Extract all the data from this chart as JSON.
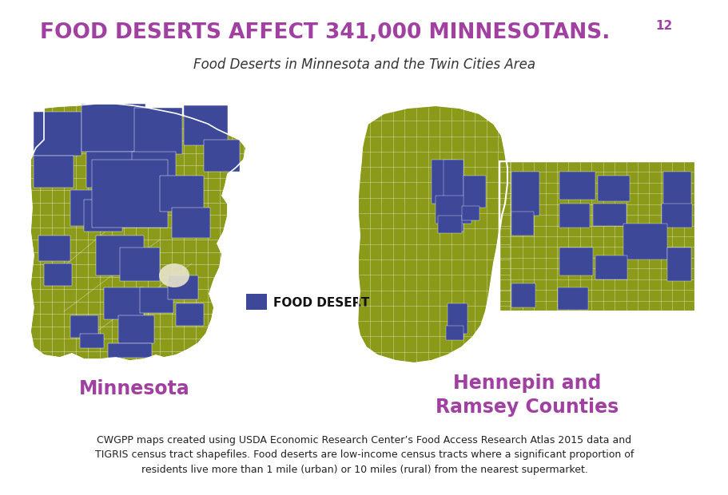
{
  "title_main": "FOOD DESERTS AFFECT 341,000 MINNESOTANS.",
  "title_superscript": "12",
  "subtitle": "Food Deserts in Minnesota and the Twin Cities Area",
  "label_left": "Minnesota",
  "label_right": "Hennepin and\nRamsey Counties",
  "legend_label": "FOOD DESERT",
  "legend_color": "#3d4f9f",
  "footnote": "CWGPP maps created using USDA Economic Research Center’s Food Access Research Atlas 2015 data and\nTIGRIS census tract shapefiles. Food deserts are low-income census tracts where a significant proportion of\nresidents live more than 1 mile (urban) or 10 miles (rural) from the nearest supermarket.",
  "title_color": "#a040a0",
  "label_color": "#a040a0",
  "map_olive": "#8b9a18",
  "map_blue": "#3d4899",
  "background_color": "#ffffff"
}
